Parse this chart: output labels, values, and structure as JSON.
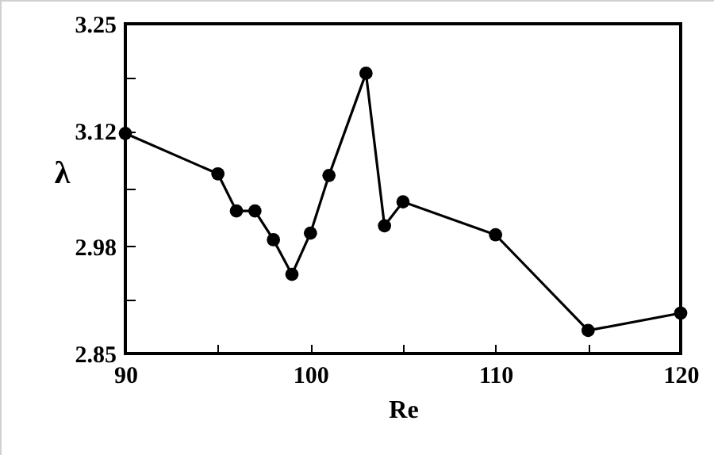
{
  "chart_data": {
    "type": "line",
    "xlabel": "Re",
    "ylabel": "λ",
    "x": [
      90,
      95,
      96,
      97,
      98,
      99,
      100,
      101,
      103,
      104,
      105,
      110,
      115,
      120
    ],
    "series": [
      {
        "color": "#000000",
        "values": [
          3.117,
          3.068,
          3.023,
          3.023,
          2.988,
          2.946,
          2.996,
          3.066,
          3.19,
          3.005,
          3.034,
          2.994,
          2.878,
          2.899
        ]
      }
    ],
    "xlim": [
      90,
      120
    ],
    "xticks": [
      90,
      {
        "value": 95,
        "label": null
      },
      100,
      {
        "value": 105,
        "label": null
      },
      110,
      {
        "value": 115,
        "label": null
      },
      120
    ],
    "ylim": [
      2.85,
      3.25
    ],
    "yticks": [
      2.85,
      {
        "value": 2.915,
        "label": null
      },
      2.98,
      {
        "value": 3.05,
        "label": null
      },
      3.12,
      {
        "value": 3.185,
        "label": null
      },
      3.25
    ],
    "grid": false,
    "marker": "circle",
    "line_style": "solid"
  }
}
